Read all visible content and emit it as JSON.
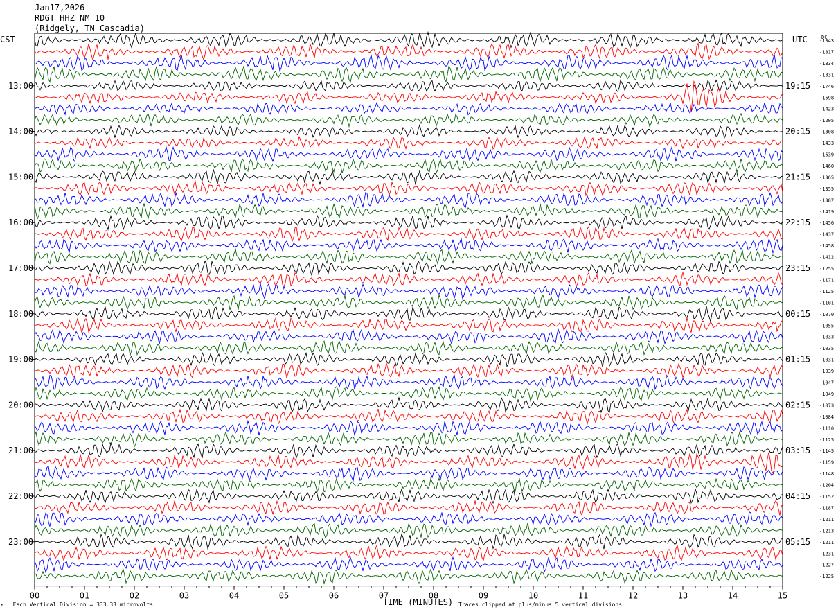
{
  "header": {
    "date": "Jan17,2026",
    "station": "RDGT HHZ NM 10",
    "location": "(Ridgely, TN Cascadia)"
  },
  "left_axis_label": "CST",
  "right_axis_label": "UTC",
  "dc_label": "DC",
  "footer": {
    "vertical_division": "Each Vertical Division =  333.33 microvolts",
    "clip_note": "Traces clipped at plus/minus 5 vertical divisions"
  },
  "colors": {
    "cycle": [
      "#000000",
      "#ff0000",
      "#0000ff",
      "#006400"
    ]
  },
  "chart_data": {
    "type": "line",
    "xlabel": "TIME (MINUTES)",
    "xlim": [
      0,
      15
    ],
    "x_ticks": [
      "00",
      "01",
      "02",
      "03",
      "04",
      "05",
      "06",
      "07",
      "08",
      "09",
      "10",
      "11",
      "12",
      "13",
      "14",
      "15"
    ],
    "left_hour_labels": [
      "13:00",
      "14:00",
      "15:00",
      "16:00",
      "17:00",
      "18:00",
      "19:00",
      "20:00",
      "21:00",
      "22:00",
      "23:00"
    ],
    "right_hour_labels": [
      "19:15",
      "20:15",
      "21:15",
      "22:15",
      "23:15",
      "00:15",
      "01:15",
      "02:15",
      "03:15",
      "04:15",
      "05:15"
    ],
    "first_labeled_trace": 4,
    "traces_per_hour": 4,
    "dc_offsets": [
      -1343,
      -1317,
      -1334,
      -1331,
      -1746,
      -1598,
      -1423,
      -1205,
      -1308,
      -1433,
      -1639,
      -1460,
      -1365,
      -1355,
      -1387,
      -1419,
      -1456,
      -1437,
      -1458,
      -1412,
      -1255,
      -1171,
      -1125,
      -1101,
      -1070,
      -1055,
      -1033,
      -1035,
      -1031,
      -1039,
      -1047,
      -1049,
      -1073,
      -1084,
      -1110,
      -1125,
      -1145,
      -1159,
      -1148,
      -1204,
      -1152,
      -1187,
      -1211,
      -1213,
      -1211,
      -1231,
      -1227,
      -1225
    ]
  }
}
